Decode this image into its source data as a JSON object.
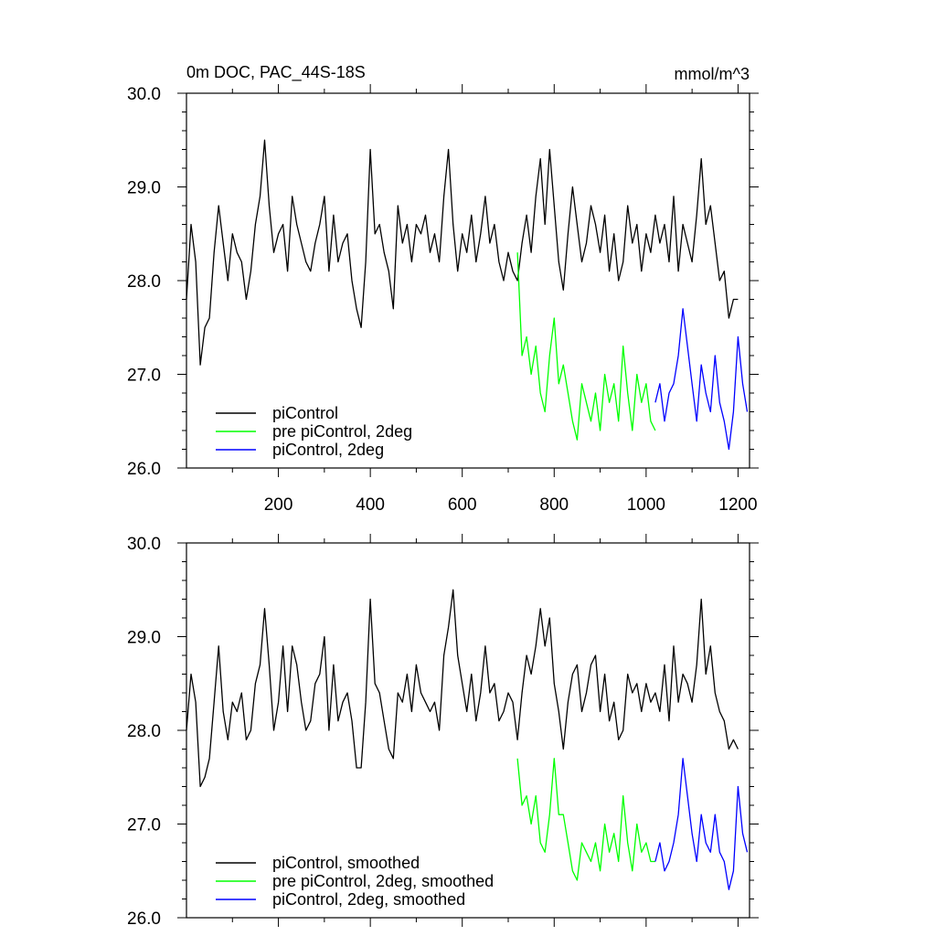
{
  "chart_data": [
    {
      "type": "line",
      "title": "0m DOC, PAC_44S-18S",
      "units": "mmol/m^3",
      "xlim": [
        0,
        1225
      ],
      "ylim": [
        26.0,
        30.0
      ],
      "x_ticks": [
        200,
        400,
        600,
        800,
        1000,
        1200
      ],
      "x_tick_labels": [
        "200",
        "400",
        "600",
        "800",
        "1000",
        "1200"
      ],
      "y_ticks": [
        26.0,
        27.0,
        28.0,
        29.0,
        30.0
      ],
      "y_tick_labels": [
        "26.0",
        "27.0",
        "28.0",
        "29.0",
        "30.0"
      ],
      "legend": "bottom-left",
      "series": [
        {
          "name": "piControl",
          "color": "#000000",
          "x": [
            0,
            10,
            20,
            30,
            40,
            50,
            60,
            70,
            80,
            90,
            100,
            110,
            120,
            130,
            140,
            150,
            160,
            170,
            180,
            190,
            200,
            210,
            220,
            230,
            240,
            250,
            260,
            270,
            280,
            290,
            300,
            310,
            320,
            330,
            340,
            350,
            360,
            370,
            380,
            390,
            400,
            410,
            420,
            430,
            440,
            450,
            460,
            470,
            480,
            490,
            500,
            510,
            520,
            530,
            540,
            550,
            560,
            570,
            580,
            590,
            600,
            610,
            620,
            630,
            640,
            650,
            660,
            670,
            680,
            690,
            700,
            710,
            720,
            730,
            740,
            750,
            760,
            770,
            780,
            790,
            800,
            810,
            820,
            830,
            840,
            850,
            860,
            870,
            880,
            890,
            900,
            910,
            920,
            930,
            940,
            950,
            960,
            970,
            980,
            990,
            1000,
            1010,
            1020,
            1030,
            1040,
            1050,
            1060,
            1070,
            1080,
            1090,
            1100,
            1110,
            1120,
            1130,
            1140,
            1150,
            1160,
            1170,
            1180,
            1190,
            1200
          ],
          "values": [
            27.8,
            28.6,
            28.2,
            27.1,
            27.5,
            27.6,
            28.3,
            28.8,
            28.4,
            28.0,
            28.5,
            28.3,
            28.2,
            27.8,
            28.1,
            28.6,
            28.9,
            29.5,
            28.8,
            28.3,
            28.5,
            28.6,
            28.1,
            28.9,
            28.6,
            28.4,
            28.2,
            28.1,
            28.4,
            28.6,
            28.9,
            28.1,
            28.7,
            28.2,
            28.4,
            28.5,
            28.0,
            27.7,
            27.5,
            28.2,
            29.4,
            28.5,
            28.6,
            28.3,
            28.1,
            27.7,
            28.8,
            28.4,
            28.6,
            28.2,
            28.6,
            28.5,
            28.7,
            28.3,
            28.5,
            28.2,
            28.9,
            29.4,
            28.6,
            28.1,
            28.5,
            28.3,
            28.7,
            28.2,
            28.5,
            28.9,
            28.4,
            28.6,
            28.2,
            28.0,
            28.3,
            28.1,
            28.0,
            28.4,
            28.7,
            28.3,
            28.9,
            29.3,
            28.6,
            29.4,
            28.8,
            28.2,
            27.9,
            28.5,
            29.0,
            28.6,
            28.2,
            28.4,
            28.8,
            28.6,
            28.3,
            28.7,
            28.1,
            28.5,
            28.0,
            28.2,
            28.8,
            28.4,
            28.6,
            28.1,
            28.5,
            28.3,
            28.7,
            28.4,
            28.6,
            28.2,
            28.9,
            28.1,
            28.6,
            28.4,
            28.2,
            28.7,
            29.3,
            28.6,
            28.8,
            28.4,
            28.0,
            28.1,
            27.6,
            27.8,
            27.8
          ]
        },
        {
          "name": "pre piControl, 2deg",
          "color": "#00ff00",
          "x": [
            720,
            730,
            740,
            750,
            760,
            770,
            780,
            790,
            800,
            810,
            820,
            830,
            840,
            850,
            860,
            870,
            880,
            890,
            900,
            910,
            920,
            930,
            940,
            950,
            960,
            970,
            980,
            990,
            1000,
            1010,
            1020
          ],
          "values": [
            28.3,
            27.2,
            27.4,
            27.0,
            27.3,
            26.8,
            26.6,
            27.2,
            27.6,
            26.9,
            27.1,
            26.8,
            26.5,
            26.3,
            26.9,
            26.7,
            26.5,
            26.8,
            26.4,
            27.0,
            26.7,
            26.9,
            26.5,
            27.3,
            26.8,
            26.4,
            27.0,
            26.7,
            26.9,
            26.5,
            26.4
          ]
        },
        {
          "name": "piControl, 2deg",
          "color": "#0000ff",
          "x": [
            1020,
            1030,
            1040,
            1050,
            1060,
            1070,
            1080,
            1090,
            1100,
            1110,
            1120,
            1130,
            1140,
            1150,
            1160,
            1170,
            1180,
            1190,
            1200,
            1210,
            1220
          ],
          "values": [
            26.7,
            26.9,
            26.5,
            26.8,
            26.9,
            27.2,
            27.7,
            27.3,
            26.9,
            26.5,
            27.1,
            26.8,
            26.6,
            27.2,
            26.7,
            26.5,
            26.2,
            26.6,
            27.4,
            26.9,
            26.6
          ]
        }
      ]
    },
    {
      "type": "line",
      "xlim": [
        0,
        1225
      ],
      "ylim": [
        26.0,
        30.0
      ],
      "x_ticks": [
        200,
        400,
        600,
        800,
        1000,
        1200
      ],
      "y_ticks": [
        26.0,
        27.0,
        28.0,
        29.0,
        30.0
      ],
      "y_tick_labels": [
        "26.0",
        "27.0",
        "28.0",
        "29.0",
        "30.0"
      ],
      "legend": "bottom-left",
      "series": [
        {
          "name": "piControl, smoothed",
          "color": "#000000",
          "x": [
            0,
            10,
            20,
            30,
            40,
            50,
            60,
            70,
            80,
            90,
            100,
            110,
            120,
            130,
            140,
            150,
            160,
            170,
            180,
            190,
            200,
            210,
            220,
            230,
            240,
            250,
            260,
            270,
            280,
            290,
            300,
            310,
            320,
            330,
            340,
            350,
            360,
            370,
            380,
            390,
            400,
            410,
            420,
            430,
            440,
            450,
            460,
            470,
            480,
            490,
            500,
            510,
            520,
            530,
            540,
            550,
            560,
            570,
            580,
            590,
            600,
            610,
            620,
            630,
            640,
            650,
            660,
            670,
            680,
            690,
            700,
            710,
            720,
            730,
            740,
            750,
            760,
            770,
            780,
            790,
            800,
            810,
            820,
            830,
            840,
            850,
            860,
            870,
            880,
            890,
            900,
            910,
            920,
            930,
            940,
            950,
            960,
            970,
            980,
            990,
            1000,
            1010,
            1020,
            1030,
            1040,
            1050,
            1060,
            1070,
            1080,
            1090,
            1100,
            1110,
            1120,
            1130,
            1140,
            1150,
            1160,
            1170,
            1180,
            1190,
            1200
          ],
          "values": [
            28.0,
            28.6,
            28.3,
            27.4,
            27.5,
            27.7,
            28.3,
            28.9,
            28.2,
            27.9,
            28.3,
            28.2,
            28.4,
            27.9,
            28.0,
            28.5,
            28.7,
            29.3,
            28.7,
            28.0,
            28.3,
            28.9,
            28.2,
            28.9,
            28.7,
            28.3,
            28.0,
            28.1,
            28.5,
            28.6,
            29.0,
            28.0,
            28.7,
            28.1,
            28.3,
            28.4,
            28.1,
            27.6,
            27.6,
            28.3,
            29.4,
            28.5,
            28.4,
            28.1,
            27.8,
            27.7,
            28.4,
            28.3,
            28.6,
            28.2,
            28.7,
            28.4,
            28.3,
            28.2,
            28.3,
            28.0,
            28.8,
            29.1,
            29.5,
            28.8,
            28.5,
            28.2,
            28.6,
            28.1,
            28.4,
            28.9,
            28.4,
            28.5,
            28.1,
            28.2,
            28.4,
            28.3,
            27.9,
            28.4,
            28.8,
            28.6,
            28.9,
            29.3,
            28.9,
            29.2,
            28.5,
            28.2,
            27.8,
            28.3,
            28.6,
            28.7,
            28.2,
            28.4,
            28.7,
            28.8,
            28.2,
            28.6,
            28.1,
            28.3,
            27.9,
            28.0,
            28.6,
            28.4,
            28.5,
            28.2,
            28.5,
            28.3,
            28.4,
            28.2,
            28.7,
            28.1,
            28.9,
            28.3,
            28.6,
            28.5,
            28.3,
            28.7,
            29.4,
            28.6,
            28.9,
            28.4,
            28.2,
            28.1,
            27.8,
            27.9,
            27.8
          ]
        },
        {
          "name": "pre piControl, 2deg, smoothed",
          "color": "#00ff00",
          "x": [
            720,
            730,
            740,
            750,
            760,
            770,
            780,
            790,
            800,
            810,
            820,
            830,
            840,
            850,
            860,
            870,
            880,
            890,
            900,
            910,
            920,
            930,
            940,
            950,
            960,
            970,
            980,
            990,
            1000,
            1010,
            1020
          ],
          "values": [
            27.7,
            27.2,
            27.3,
            27.0,
            27.3,
            26.8,
            26.7,
            27.1,
            27.7,
            27.1,
            27.1,
            26.8,
            26.5,
            26.4,
            26.8,
            26.7,
            26.6,
            26.8,
            26.5,
            27.0,
            26.7,
            26.9,
            26.6,
            27.3,
            26.8,
            26.5,
            27.0,
            26.7,
            26.8,
            26.6,
            26.6
          ]
        },
        {
          "name": "piControl, 2deg, smoothed",
          "color": "#0000ff",
          "x": [
            1020,
            1030,
            1040,
            1050,
            1060,
            1070,
            1080,
            1090,
            1100,
            1110,
            1120,
            1130,
            1140,
            1150,
            1160,
            1170,
            1180,
            1190,
            1200,
            1210,
            1220
          ],
          "values": [
            26.6,
            26.8,
            26.5,
            26.6,
            26.8,
            27.1,
            27.7,
            27.3,
            26.9,
            26.6,
            27.1,
            26.8,
            26.7,
            27.1,
            26.7,
            26.6,
            26.3,
            26.5,
            27.4,
            26.9,
            26.7
          ]
        }
      ]
    }
  ]
}
